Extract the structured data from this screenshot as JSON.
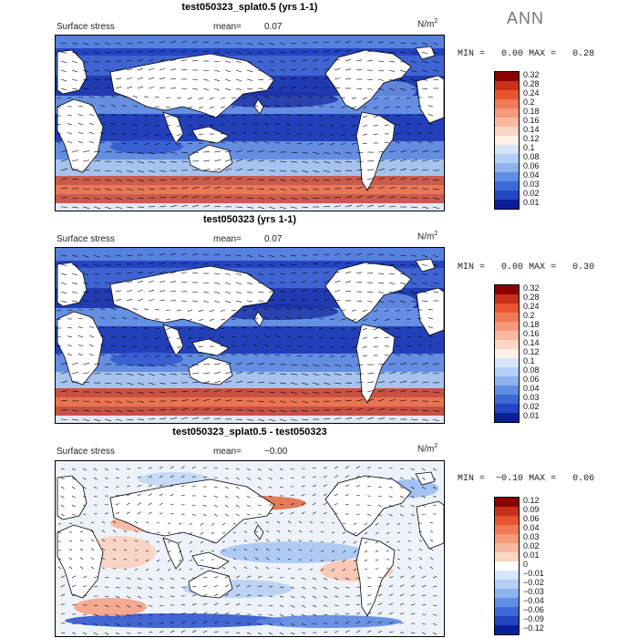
{
  "season": "ANN",
  "units_base": "N/m",
  "units_exp": "2",
  "panels": [
    {
      "title": "test050323_splat0.5 (yrs 1-1)",
      "field": "Surface stress",
      "mean_label": "mean=",
      "mean_value": "0.07",
      "min_label": "MIN =",
      "min_value": "0.00",
      "max_label": "MAX =",
      "max_value": "0.28",
      "colorbar": [
        "0.32",
        "0.28",
        "0.24",
        "0.2",
        "0.18",
        "0.16",
        "0.14",
        "0.12",
        "0.1",
        "0.08",
        "0.06",
        "0.04",
        "0.03",
        "0.02",
        "0.01"
      ]
    },
    {
      "title": "test050323 (yrs 1-1)",
      "field": "Surface stress",
      "mean_label": "mean=",
      "mean_value": "0.07",
      "min_label": "MIN =",
      "min_value": "0.00",
      "max_label": "MAX =",
      "max_value": "0.30",
      "colorbar": [
        "0.32",
        "0.28",
        "0.24",
        "0.2",
        "0.18",
        "0.16",
        "0.14",
        "0.12",
        "0.1",
        "0.08",
        "0.06",
        "0.04",
        "0.03",
        "0.02",
        "0.01"
      ]
    },
    {
      "title": "test050323_splat0.5 - test050323",
      "field": "Surface stress",
      "mean_label": "mean=",
      "mean_value": "−0.00",
      "min_label": "MIN =",
      "min_value": "−0.10",
      "max_label": "MAX =",
      "max_value": "0.06",
      "colorbar": [
        "0.12",
        "0.09",
        "0.06",
        "0.04",
        "0.03",
        "0.02",
        "0.01",
        "0",
        "−0.01",
        "−0.02",
        "−0.03",
        "−0.04",
        "−0.06",
        "−0.09",
        "−0.12"
      ]
    }
  ],
  "colors": {
    "abs_scale": [
      "#8b0000",
      "#c8301c",
      "#e8542f",
      "#f07a55",
      "#f59a7a",
      "#f8b9a0",
      "#fad6c4",
      "#fdf0e6",
      "#d6e6fa",
      "#b4cff5",
      "#8cb3ee",
      "#5f8ee3",
      "#3d69d6",
      "#2347c2",
      "#0b1f99"
    ],
    "diff_scale": [
      "#8b0000",
      "#c8301c",
      "#e8542f",
      "#f07a55",
      "#f59a7a",
      "#f8b9a0",
      "#fad6c4",
      "#ffffff",
      "#d6e6fa",
      "#b4cff5",
      "#8cb3ee",
      "#5f8ee3",
      "#3d69d6",
      "#2347c2",
      "#0b1f99"
    ]
  }
}
